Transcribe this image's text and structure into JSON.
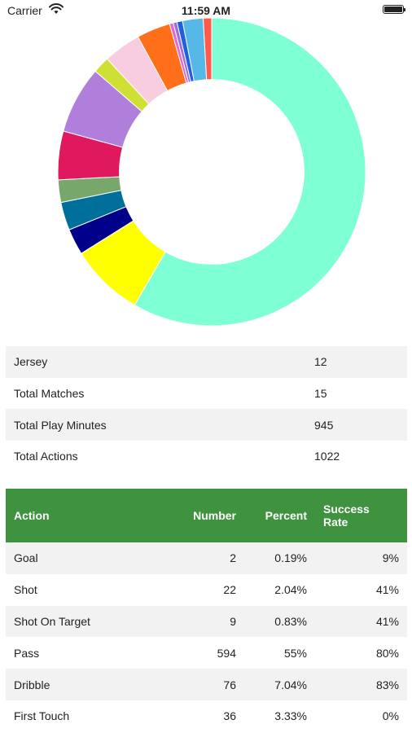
{
  "status_bar": {
    "carrier": "Carrier",
    "time": "11:59 AM"
  },
  "chart_data": {
    "type": "pie",
    "hole": 0.6,
    "start_angle_deg": 0,
    "slices": [
      {
        "label": "Pass",
        "value": 594,
        "color": "#7fffd4"
      },
      {
        "label": "Slice 2",
        "value": 79,
        "color": "#ffff00"
      },
      {
        "label": "Slice 3",
        "value": 28,
        "color": "#00008b"
      },
      {
        "label": "Slice 4",
        "value": 30,
        "color": "#006f9a"
      },
      {
        "label": "Slice 5",
        "value": 24,
        "color": "#77a76a"
      },
      {
        "label": "Slice 6",
        "value": 52,
        "color": "#e0195f"
      },
      {
        "label": "Slice 7",
        "value": 72,
        "color": "#b07fdc"
      },
      {
        "label": "Slice 8",
        "value": 18,
        "color": "#cfe035"
      },
      {
        "label": "Slice 9",
        "value": 40,
        "color": "#f9cde0"
      },
      {
        "label": "Slice 10",
        "value": 36,
        "color": "#ff6f1a"
      },
      {
        "label": "Slice 11",
        "value": 4,
        "color": "#e36ad3"
      },
      {
        "label": "Slice 12",
        "value": 4,
        "color": "#9a6fe0"
      },
      {
        "label": "Slice 13",
        "value": 6,
        "color": "#1f5fe0"
      },
      {
        "label": "Slice 14",
        "value": 22,
        "color": "#56b8e6"
      },
      {
        "label": "Slice 15",
        "value": 9,
        "color": "#ff5a4a"
      }
    ]
  },
  "info": [
    {
      "label": "Jersey",
      "value": "12"
    },
    {
      "label": "Total Matches",
      "value": "15"
    },
    {
      "label": "Total Play Minutes",
      "value": "945"
    },
    {
      "label": "Total Actions",
      "value": "1022"
    }
  ],
  "actions": {
    "headers": {
      "action": "Action",
      "number": "Number",
      "percent": "Percent",
      "success_rate_line1": "Success",
      "success_rate_line2": "Rate"
    },
    "rows": [
      {
        "action": "Goal",
        "number": "2",
        "percent": "0.19%",
        "success": "9%"
      },
      {
        "action": "Shot",
        "number": "22",
        "percent": "2.04%",
        "success": "41%"
      },
      {
        "action": "Shot On Target",
        "number": "9",
        "percent": "0.83%",
        "success": "41%"
      },
      {
        "action": "Pass",
        "number": "594",
        "percent": "55%",
        "success": "80%"
      },
      {
        "action": "Dribble",
        "number": "76",
        "percent": "7.04%",
        "success": "83%"
      },
      {
        "action": "First Touch",
        "number": "36",
        "percent": "3.33%",
        "success": "0%"
      }
    ]
  }
}
